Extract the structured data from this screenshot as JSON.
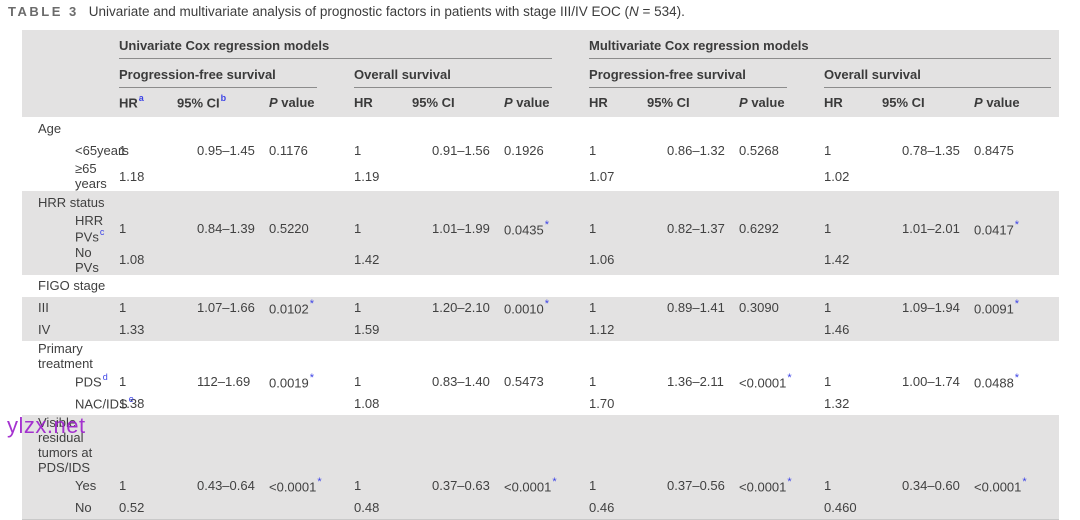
{
  "colors": {
    "shade_gray": "#e3e2e2",
    "significance_blue": "#3c43e6",
    "watermark_purple": "#9e22cd",
    "rule_gray": "#8c8c8c"
  },
  "title": {
    "label": "TABLE 3",
    "pre": "Univariate and multivariate analysis of prognostic factors in patients with stage III/IV EOC (",
    "n": "N",
    "post": " = 534)."
  },
  "watermark": {
    "text": "ylzx.net"
  },
  "table": {
    "groups": [
      {
        "label": "Univariate Cox regression models"
      },
      {
        "label": "Multivariate Cox regression models"
      }
    ],
    "subgroups": [
      {
        "label": "Progression-free survival"
      },
      {
        "label": "Overall survival"
      },
      {
        "label": "Progression-free survival"
      },
      {
        "label": "Overall survival"
      }
    ],
    "col_headers": [
      {
        "text": "HR",
        "sup": "a"
      },
      {
        "text": "95% CI",
        "sup": "b"
      },
      {
        "italic": "P",
        "text": " value"
      },
      {
        "text": "HR"
      },
      {
        "text": "95% CI"
      },
      {
        "italic": "P",
        "text": " value"
      },
      {
        "text": "HR"
      },
      {
        "text": "95% CI"
      },
      {
        "italic": "P",
        "text": " value"
      },
      {
        "text": "HR"
      },
      {
        "text": "95% CI"
      },
      {
        "italic": "P",
        "text": " value"
      }
    ],
    "rows": [
      {
        "type": "section",
        "label": "Age",
        "shade": false
      },
      {
        "type": "sub",
        "label": "<65years",
        "shade": false,
        "cells": [
          "1",
          "0.95–1.45",
          "0.1176",
          "1",
          "0.91–1.56",
          "0.1926",
          "1",
          "0.86–1.32",
          "0.5268",
          "1",
          "0.78–1.35",
          "0.8475"
        ]
      },
      {
        "type": "sub",
        "label": "≥65 years",
        "shade": false,
        "cells": [
          "1.18",
          "",
          "",
          "1.19",
          "",
          "",
          "1.07",
          "",
          "",
          "1.02",
          "",
          ""
        ]
      },
      {
        "type": "section",
        "label": "HRR status",
        "shade": true
      },
      {
        "type": "sub",
        "label": "HRR PVs",
        "sup": "c",
        "shade": true,
        "cells": [
          "1",
          "0.84–1.39",
          "0.5220",
          "1",
          "1.01–1.99",
          "0.0435*",
          "1",
          "0.82–1.37",
          "0.6292",
          "1",
          "1.01–2.01",
          "0.0417*"
        ]
      },
      {
        "type": "sub",
        "label": "No PVs",
        "shade": true,
        "cells": [
          "1.08",
          "",
          "",
          "1.42",
          "",
          "",
          "1.06",
          "",
          "",
          "1.42",
          "",
          ""
        ]
      },
      {
        "type": "section",
        "label": "FIGO stage",
        "shade": false
      },
      {
        "type": "data",
        "label": "III",
        "shade": true,
        "cells": [
          "1",
          "1.07–1.66",
          "0.0102*",
          "1",
          "1.20–2.10",
          "0.0010*",
          "1",
          "0.89–1.41",
          "0.3090",
          "1",
          "1.09–1.94",
          "0.0091*"
        ]
      },
      {
        "type": "data",
        "label": "IV",
        "shade": true,
        "cells": [
          "1.33",
          "",
          "",
          "1.59",
          "",
          "",
          "1.12",
          "",
          "",
          "1.46",
          "",
          ""
        ]
      },
      {
        "type": "section",
        "label": "Primary treatment",
        "shade": false
      },
      {
        "type": "sub",
        "label": "PDS",
        "sup": "d",
        "shade": false,
        "cells": [
          "1",
          "112–1.69",
          "0.0019*",
          "1",
          "0.83–1.40",
          "0.5473",
          "1",
          "1.36–2.11",
          "<0.0001*",
          "1",
          "1.00–1.74",
          "0.0488*"
        ]
      },
      {
        "type": "sub",
        "label": "NAC/IDS",
        "sup": "e",
        "shade": false,
        "cells": [
          "1.38",
          "",
          "",
          "1.08",
          "",
          "",
          "1.70",
          "",
          "",
          "1.32",
          "",
          ""
        ]
      },
      {
        "type": "section",
        "label": "Visible residual tumors at PDS/IDS",
        "shade": true
      },
      {
        "type": "sub",
        "label": "Yes",
        "shade": true,
        "cells": [
          "1",
          "0.43–0.64",
          "<0.0001*",
          "1",
          "0.37–0.63",
          "<0.0001*",
          "1",
          "0.37–0.56",
          "<0.0001*",
          "1",
          "0.34–0.60",
          "<0.0001*"
        ]
      },
      {
        "type": "sub",
        "label": "No",
        "shade": true,
        "cells": [
          "0.52",
          "",
          "",
          "0.48",
          "",
          "",
          "0.46",
          "",
          "",
          "0.460",
          "",
          ""
        ]
      }
    ]
  }
}
